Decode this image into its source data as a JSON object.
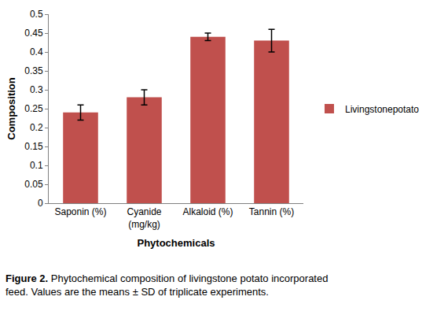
{
  "chart_data": {
    "type": "bar",
    "x_label": "Phytochemicals",
    "y_label": "Composition",
    "categories": [
      "Saponin (%)",
      "Cyanide\n(mg/kg)",
      "Alkaloid (%)",
      "Tannin (%)"
    ],
    "series": [
      {
        "name": "Livingstonepotato",
        "color": "#c0504d",
        "values": [
          0.24,
          0.28,
          0.44,
          0.43
        ],
        "errors": [
          0.02,
          0.02,
          0.01,
          0.03
        ]
      }
    ],
    "ylim": [
      0,
      0.5
    ],
    "yticks": [
      0,
      0.05,
      0.1,
      0.15,
      0.2,
      0.25,
      0.3,
      0.35,
      0.4,
      0.45,
      0.5
    ],
    "grid": false,
    "legend": "right",
    "caption": "Figure 2. Phytochemical composition of livingstone potato incorporated\nfeed. Values are the means ± SD of triplicate experiments."
  }
}
